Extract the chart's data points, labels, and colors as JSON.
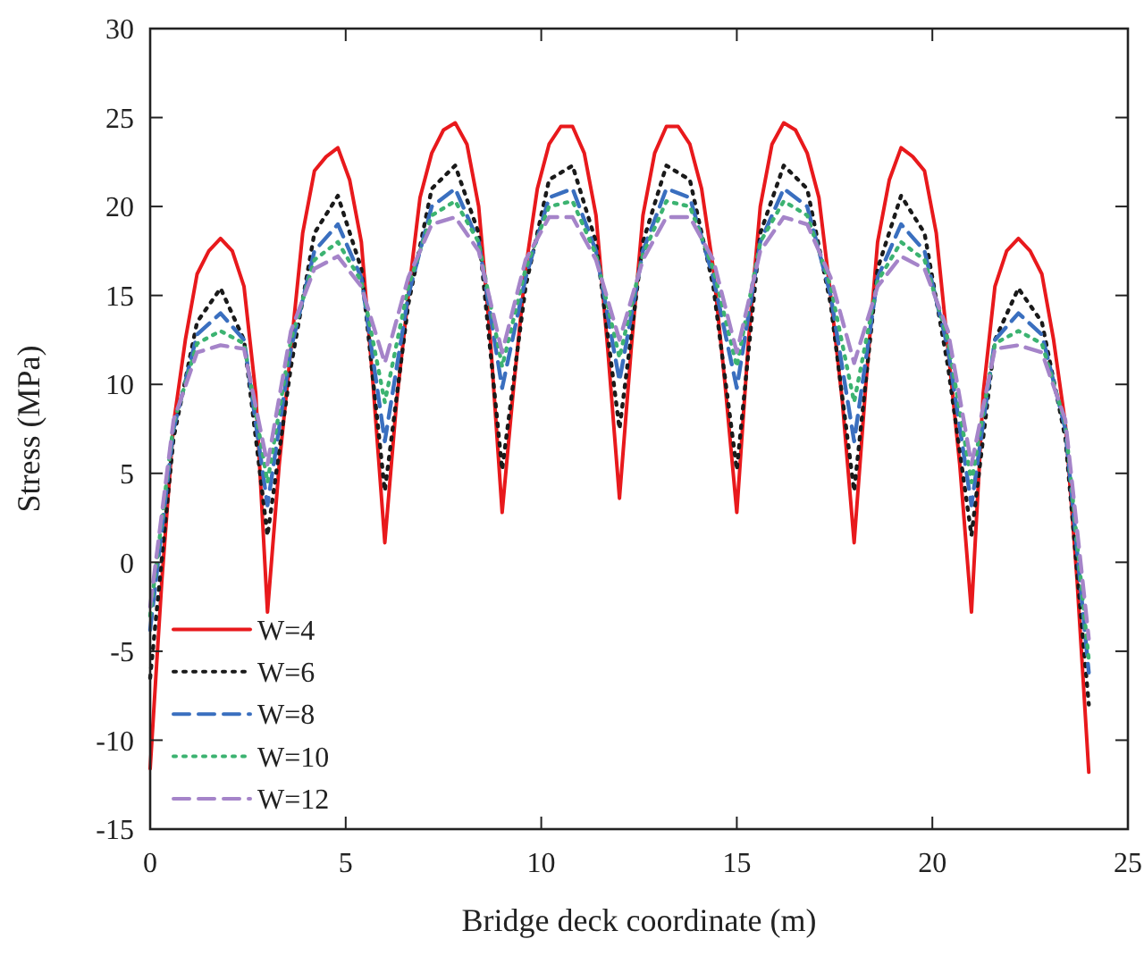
{
  "chart_data": {
    "type": "line",
    "xlabel": "Bridge deck coordinate (m)",
    "ylabel": "Stress (MPa)",
    "xlim": [
      0,
      25
    ],
    "xticks": [
      0,
      5,
      10,
      15,
      20,
      25
    ],
    "ylim": [
      -15,
      30
    ],
    "yticks": [
      -15,
      -10,
      -5,
      0,
      5,
      10,
      15,
      20,
      25,
      30
    ],
    "grid": false,
    "legend": "bottom left",
    "marker": "none",
    "series": [
      {
        "name": "W=4",
        "color": "#e8191c",
        "line_style": "solid",
        "x": [
          0,
          0.3,
          0.6,
          0.9,
          1.2,
          1.5,
          1.8,
          2.1,
          2.4,
          2.7,
          3,
          3.3,
          3.6,
          3.9,
          4.2,
          4.5,
          4.8,
          5.1,
          5.4,
          5.7,
          6,
          6.3,
          6.6,
          6.9,
          7.2,
          7.5,
          7.8,
          8.1,
          8.4,
          8.7,
          9,
          9.3,
          9.6,
          9.9,
          10.2,
          10.5,
          10.8,
          11.1,
          11.4,
          11.7,
          12,
          12.3,
          12.6,
          12.9,
          13.2,
          13.5,
          13.8,
          14.1,
          14.4,
          14.7,
          15,
          15.3,
          15.6,
          15.9,
          16.2,
          16.5,
          16.8,
          17.1,
          17.4,
          17.7,
          18,
          18.3,
          18.6,
          18.9,
          19.2,
          19.5,
          19.8,
          20.1,
          20.4,
          20.7,
          21,
          21.3,
          21.6,
          21.9,
          22.2,
          22.5,
          22.8,
          23.1,
          23.4,
          23.7,
          24
        ],
        "values": [
          -11.6,
          -1,
          7.8,
          12.5,
          16.2,
          17.5,
          18.2,
          17.5,
          15.5,
          9.5,
          -2.8,
          5.5,
          12,
          18.5,
          22,
          22.8,
          23.3,
          21.5,
          18,
          10,
          1.1,
          9,
          15,
          20.5,
          23,
          24.3,
          24.7,
          23.5,
          20,
          12.5,
          2.8,
          10,
          16.5,
          21,
          23.5,
          24.5,
          24.5,
          23,
          19.5,
          12,
          3.6,
          12,
          19.5,
          23,
          24.5,
          24.5,
          23.5,
          21,
          16.5,
          10,
          2.8,
          12.5,
          20,
          23.5,
          24.7,
          24.3,
          23,
          20.5,
          15,
          9,
          1.1,
          10,
          18,
          21.5,
          23.3,
          22.8,
          22,
          18.5,
          12,
          5.5,
          -2.8,
          9.5,
          15.5,
          17.5,
          18.2,
          17.5,
          16.2,
          12.5,
          7.8,
          -1,
          -11.8
        ]
      },
      {
        "name": "W=6",
        "color": "#1a1a1a",
        "line_style": "dotted",
        "x": [
          0,
          0.6,
          1.2,
          1.8,
          2.4,
          3,
          3.6,
          4.2,
          4.8,
          5.4,
          6,
          6.6,
          7.2,
          7.8,
          8.4,
          9,
          9.6,
          10.2,
          10.8,
          11.4,
          12,
          12.6,
          13.2,
          13.8,
          14.4,
          15,
          15.6,
          16.2,
          16.8,
          17.4,
          18,
          18.6,
          19.2,
          19.8,
          20.4,
          21,
          21.6,
          22.2,
          22.8,
          23.4,
          24
        ],
        "values": [
          -6.5,
          7,
          13.5,
          15.4,
          12.5,
          1.5,
          11,
          18.5,
          20.6,
          16.5,
          4,
          14.5,
          21,
          22.3,
          18.5,
          5.2,
          15.5,
          21.5,
          22.3,
          18,
          7.5,
          18,
          22.3,
          21.5,
          15.5,
          5.2,
          18.5,
          22.3,
          21,
          14.5,
          4,
          16.5,
          20.6,
          18.5,
          11,
          1.5,
          12.5,
          15.4,
          13.5,
          7,
          -8
        ]
      },
      {
        "name": "W=8",
        "color": "#3a6fbf",
        "line_style": "dashed",
        "x": [
          0,
          0.6,
          1.2,
          1.8,
          2.4,
          3,
          3.6,
          4.2,
          4.8,
          5.4,
          6,
          6.6,
          7.2,
          7.8,
          8.4,
          9,
          9.6,
          10.2,
          10.8,
          11.4,
          12,
          12.6,
          13.2,
          13.8,
          14.4,
          15,
          15.6,
          16.2,
          16.8,
          17.4,
          18,
          18.6,
          19.2,
          19.8,
          20.4,
          21,
          21.6,
          22.2,
          22.8,
          23.4,
          24
        ],
        "values": [
          -3.8,
          7.5,
          12.8,
          14,
          12.5,
          3.2,
          12,
          17.5,
          19,
          16,
          6.8,
          15,
          20,
          21,
          18,
          9.8,
          16,
          20.5,
          21,
          17.5,
          10.2,
          17.5,
          21,
          20.5,
          16,
          9.8,
          18,
          21,
          20,
          15,
          6.8,
          16,
          19,
          17.5,
          12,
          3.2,
          12.5,
          14,
          12.8,
          7.5,
          -6.2
        ]
      },
      {
        "name": "W=10",
        "color": "#3cb371",
        "line_style": "dotted",
        "x": [
          0,
          0.6,
          1.2,
          1.8,
          2.4,
          3,
          3.6,
          4.2,
          4.8,
          5.4,
          6,
          6.6,
          7.2,
          7.8,
          8.4,
          9,
          9.6,
          10.2,
          10.8,
          11.4,
          12,
          12.6,
          13.2,
          13.8,
          14.4,
          15,
          15.6,
          16.2,
          16.8,
          17.4,
          18,
          18.6,
          19.2,
          19.8,
          20.4,
          21,
          21.6,
          22.2,
          22.8,
          23.4,
          24
        ],
        "values": [
          -3,
          7.8,
          12.3,
          13,
          12.3,
          4.5,
          12.5,
          17,
          18,
          15.8,
          9,
          15.5,
          19.5,
          20.3,
          18,
          11,
          16.5,
          20,
          20.3,
          17.3,
          11.5,
          17.3,
          20.3,
          20,
          16.5,
          11,
          18,
          20.3,
          19.5,
          15.5,
          9,
          15.8,
          18,
          17,
          12.5,
          4.5,
          12.3,
          13,
          12.3,
          7.8,
          -5.5
        ]
      },
      {
        "name": "W=12",
        "color": "#a584c9",
        "line_style": "dashed",
        "x": [
          0,
          0.6,
          1.2,
          1.8,
          2.4,
          3,
          3.6,
          4.2,
          4.8,
          5.4,
          6,
          6.6,
          7.2,
          7.8,
          8.4,
          9,
          9.6,
          10.2,
          10.8,
          11.4,
          12,
          12.6,
          13.2,
          13.8,
          14.4,
          15,
          15.6,
          16.2,
          16.8,
          17.4,
          18,
          18.6,
          19.2,
          19.8,
          20.4,
          21,
          21.6,
          22.2,
          22.8,
          23.4,
          24
        ],
        "values": [
          -2.5,
          8,
          11.8,
          12.2,
          12,
          5.5,
          13,
          16.5,
          17.2,
          15.5,
          11.2,
          16,
          19,
          19.4,
          17.5,
          11.8,
          17,
          19.4,
          19.4,
          17,
          12.5,
          17,
          19.4,
          19.4,
          17,
          11.8,
          17.5,
          19.4,
          19,
          16,
          11.2,
          15.5,
          17.2,
          16.5,
          13,
          5.5,
          12,
          12.2,
          11.8,
          8,
          -4.3
        ]
      }
    ]
  }
}
